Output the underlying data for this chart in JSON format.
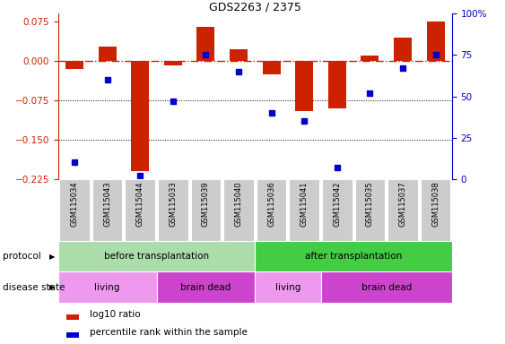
{
  "title": "GDS2263 / 2375",
  "samples": [
    "GSM115034",
    "GSM115043",
    "GSM115044",
    "GSM115033",
    "GSM115039",
    "GSM115040",
    "GSM115036",
    "GSM115041",
    "GSM115042",
    "GSM115035",
    "GSM115037",
    "GSM115038"
  ],
  "log10_ratio": [
    -0.015,
    0.028,
    -0.21,
    -0.008,
    0.065,
    0.022,
    -0.025,
    -0.095,
    -0.09,
    0.01,
    0.045,
    0.075
  ],
  "percentile_rank": [
    10,
    60,
    2,
    47,
    75,
    65,
    40,
    35,
    7,
    52,
    67,
    75
  ],
  "ylim_left": [
    -0.225,
    0.09
  ],
  "yticks_left": [
    -0.225,
    -0.15,
    -0.075,
    0,
    0.075
  ],
  "yticks_right": [
    0,
    25,
    50,
    75,
    100
  ],
  "bar_color": "#cc2200",
  "dot_color": "#0000cc",
  "dashed_line_color": "#cc2200",
  "protocol_groups": [
    {
      "label": "before transplantation",
      "start": 0,
      "end": 6,
      "color": "#aaddaa"
    },
    {
      "label": "after transplantation",
      "start": 6,
      "end": 12,
      "color": "#44cc44"
    }
  ],
  "disease_groups": [
    {
      "label": "living",
      "start": 0,
      "end": 3,
      "color": "#ee99ee"
    },
    {
      "label": "brain dead",
      "start": 3,
      "end": 6,
      "color": "#cc44cc"
    },
    {
      "label": "living",
      "start": 6,
      "end": 8,
      "color": "#ee99ee"
    },
    {
      "label": "brain dead",
      "start": 8,
      "end": 12,
      "color": "#cc44cc"
    }
  ],
  "legend_items": [
    {
      "label": "log10 ratio",
      "color": "#cc2200"
    },
    {
      "label": "percentile rank within the sample",
      "color": "#0000cc"
    }
  ],
  "protocol_label": "protocol",
  "disease_label": "disease state",
  "sample_bg_color": "#cccccc",
  "background_color": "#ffffff"
}
